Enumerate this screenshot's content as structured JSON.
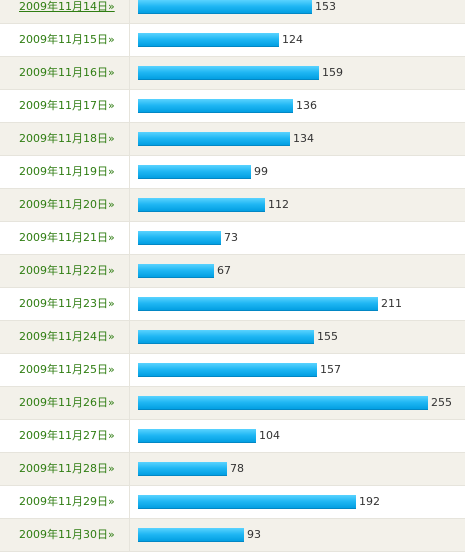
{
  "chart_data": {
    "type": "bar",
    "orientation": "horizontal",
    "categories": [
      "2009年11月14日»",
      "2009年11月15日»",
      "2009年11月16日»",
      "2009年11月17日»",
      "2009年11月18日»",
      "2009年11月19日»",
      "2009年11月20日»",
      "2009年11月21日»",
      "2009年11月22日»",
      "2009年11月23日»",
      "2009年11月24日»",
      "2009年11月25日»",
      "2009年11月26日»",
      "2009年11月27日»",
      "2009年11月28日»",
      "2009年11月29日»",
      "2009年11月30日»"
    ],
    "values": [
      153,
      124,
      159,
      136,
      134,
      99,
      112,
      73,
      67,
      211,
      155,
      157,
      255,
      104,
      78,
      192,
      93
    ],
    "grid": false,
    "legend": "none",
    "colors": {
      "bar": "#1eb6f3",
      "label": "#2f7d12",
      "row_alt": "#f3f1ea"
    }
  }
}
